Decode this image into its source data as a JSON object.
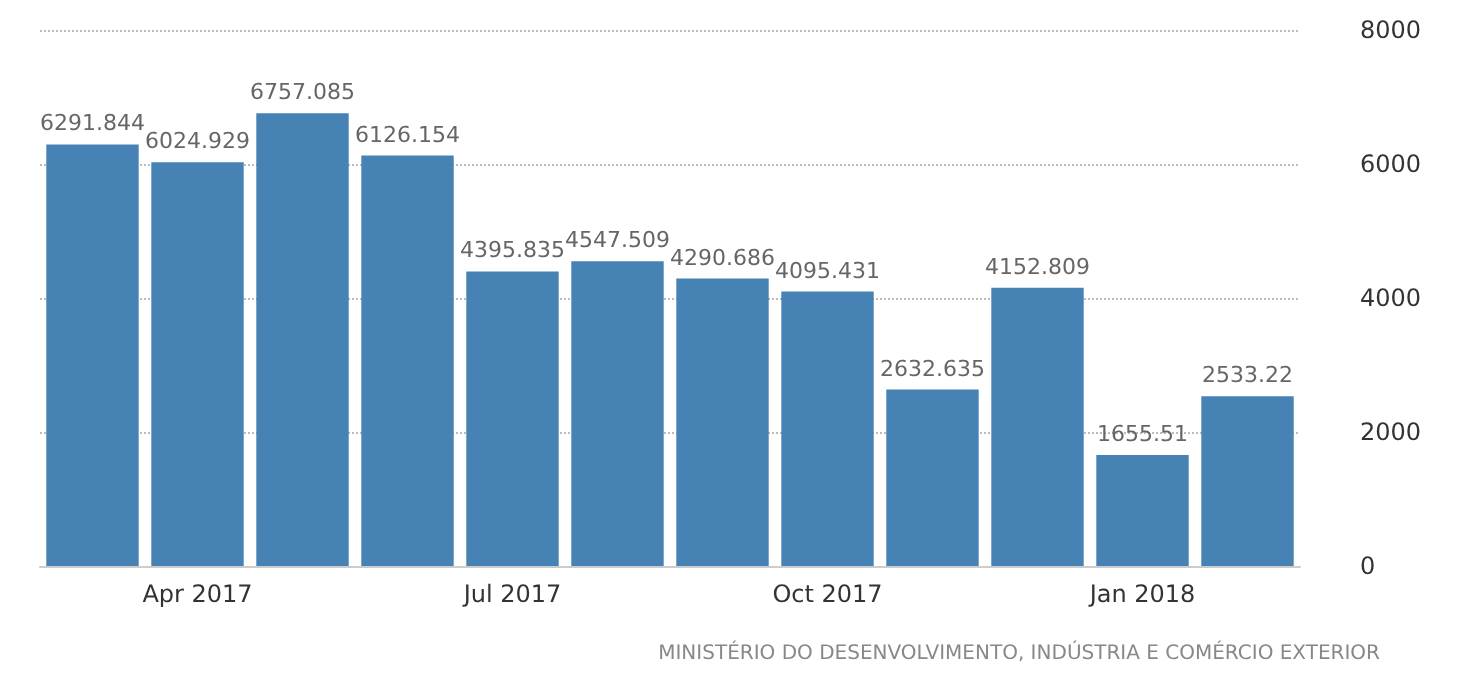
{
  "chart_data": {
    "type": "bar",
    "categories": [
      null,
      "Apr 2017",
      null,
      null,
      "Jul 2017",
      null,
      null,
      "Oct 2017",
      null,
      null,
      "Jan 2018",
      null
    ],
    "values": [
      6291.844,
      6024.929,
      6757.085,
      6126.154,
      4395.835,
      4547.509,
      4290.686,
      4095.431,
      2632.635,
      4152.809,
      1655.51,
      2533.22
    ],
    "color": "#4682b4",
    "ylim": [
      0,
      8000
    ],
    "yticks": [
      0,
      2000,
      4000,
      6000,
      8000
    ],
    "grid": "y",
    "data_labels": true,
    "annotations": [
      "MINISTÉRIO DO DESENVOLVIMENTO, INDÚSTRIA E COMÉRCIO EXTERIOR"
    ]
  }
}
